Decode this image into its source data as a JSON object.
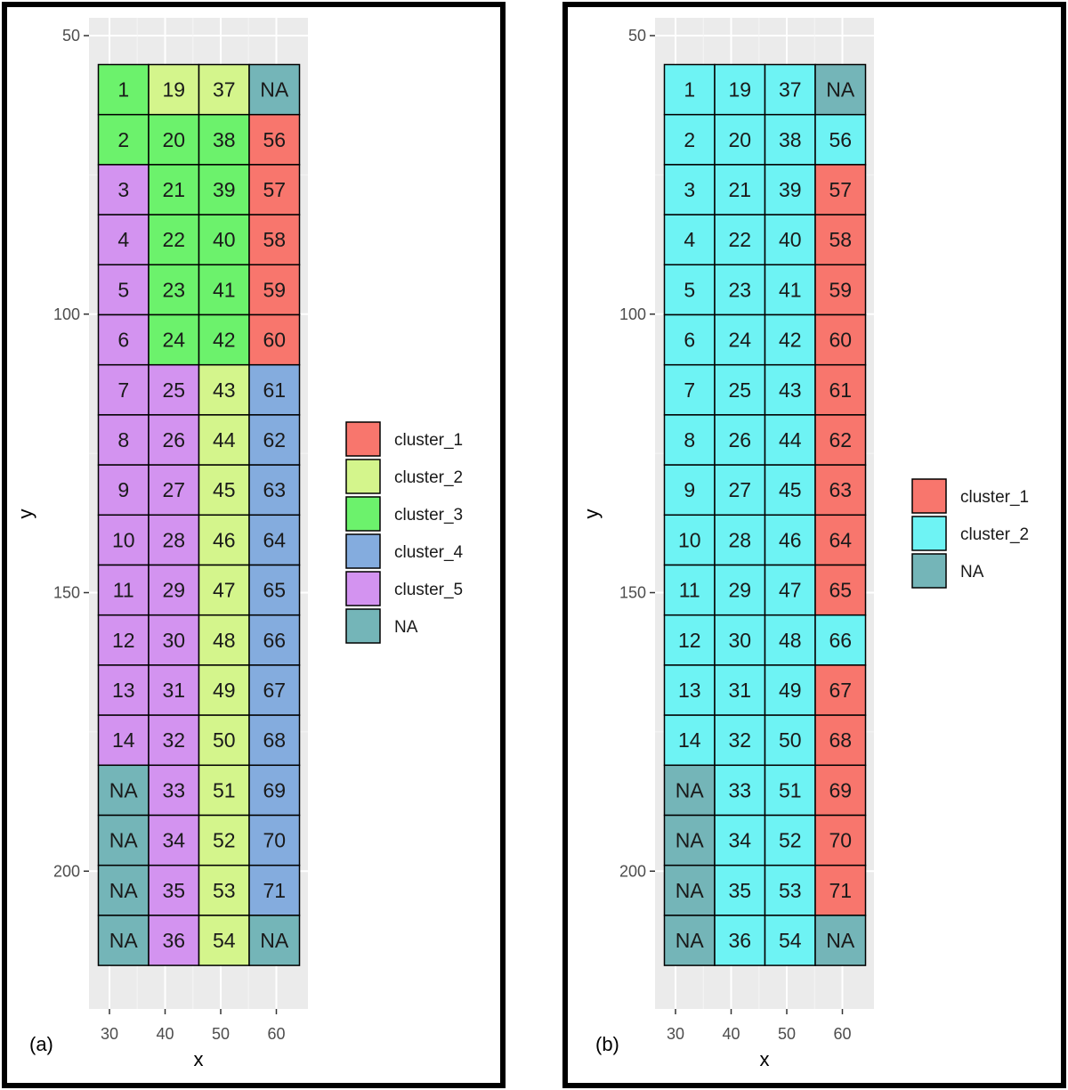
{
  "chart_data": [
    {
      "type": "heatmap",
      "panel_label": "(a)",
      "xlabel": "x",
      "ylabel": "y",
      "x_ticks": [
        30,
        40,
        50,
        60
      ],
      "y_ticks": [
        50,
        100,
        150,
        200
      ],
      "y_reversed": true,
      "columns_x": [
        30,
        40,
        50,
        60
      ],
      "rows_y": [
        60,
        69,
        78,
        87,
        96,
        105,
        114,
        123,
        132,
        141,
        150,
        159,
        168,
        177,
        186,
        195,
        204,
        213
      ],
      "columns": [
        {
          "labels": [
            "1",
            "2",
            "3",
            "4",
            "5",
            "6",
            "7",
            "8",
            "9",
            "10",
            "11",
            "12",
            "13",
            "14",
            "NA",
            "NA",
            "NA",
            "NA"
          ],
          "clusters": [
            "cluster_3",
            "cluster_3",
            "cluster_5",
            "cluster_5",
            "cluster_5",
            "cluster_5",
            "cluster_5",
            "cluster_5",
            "cluster_5",
            "cluster_5",
            "cluster_5",
            "cluster_5",
            "cluster_5",
            "cluster_5",
            "NA",
            "NA",
            "NA",
            "NA"
          ]
        },
        {
          "labels": [
            "19",
            "20",
            "21",
            "22",
            "23",
            "24",
            "25",
            "26",
            "27",
            "28",
            "29",
            "30",
            "31",
            "32",
            "33",
            "34",
            "35",
            "36"
          ],
          "clusters": [
            "cluster_2",
            "cluster_3",
            "cluster_3",
            "cluster_3",
            "cluster_3",
            "cluster_3",
            "cluster_5",
            "cluster_5",
            "cluster_5",
            "cluster_5",
            "cluster_5",
            "cluster_5",
            "cluster_5",
            "cluster_5",
            "cluster_5",
            "cluster_5",
            "cluster_5",
            "cluster_5"
          ]
        },
        {
          "labels": [
            "37",
            "38",
            "39",
            "40",
            "41",
            "42",
            "43",
            "44",
            "45",
            "46",
            "47",
            "48",
            "49",
            "50",
            "51",
            "52",
            "53",
            "54"
          ],
          "clusters": [
            "cluster_2",
            "cluster_3",
            "cluster_3",
            "cluster_3",
            "cluster_3",
            "cluster_3",
            "cluster_2",
            "cluster_2",
            "cluster_2",
            "cluster_2",
            "cluster_2",
            "cluster_2",
            "cluster_2",
            "cluster_2",
            "cluster_2",
            "cluster_2",
            "cluster_2",
            "cluster_2"
          ]
        },
        {
          "labels": [
            "NA",
            "56",
            "57",
            "58",
            "59",
            "60",
            "61",
            "62",
            "63",
            "64",
            "65",
            "66",
            "67",
            "68",
            "69",
            "70",
            "71",
            "NA"
          ],
          "clusters": [
            "NA",
            "cluster_1",
            "cluster_1",
            "cluster_1",
            "cluster_1",
            "cluster_1",
            "cluster_4",
            "cluster_4",
            "cluster_4",
            "cluster_4",
            "cluster_4",
            "cluster_4",
            "cluster_4",
            "cluster_4",
            "cluster_4",
            "cluster_4",
            "cluster_4",
            "NA"
          ]
        }
      ],
      "legend": [
        {
          "name": "cluster_1",
          "color": "#f8766d"
        },
        {
          "name": "cluster_2",
          "color": "#d4f58c"
        },
        {
          "name": "cluster_3",
          "color": "#6cf26c"
        },
        {
          "name": "cluster_4",
          "color": "#84acde"
        },
        {
          "name": "cluster_5",
          "color": "#d393f0"
        },
        {
          "name": "NA",
          "color": "#74b5b8"
        }
      ],
      "legend_position": "right"
    },
    {
      "type": "heatmap",
      "panel_label": "(b)",
      "xlabel": "x",
      "ylabel": "y",
      "x_ticks": [
        30,
        40,
        50,
        60
      ],
      "y_ticks": [
        50,
        100,
        150,
        200
      ],
      "y_reversed": true,
      "columns_x": [
        30,
        40,
        50,
        60
      ],
      "rows_y": [
        60,
        69,
        78,
        87,
        96,
        105,
        114,
        123,
        132,
        141,
        150,
        159,
        168,
        177,
        186,
        195,
        204,
        213
      ],
      "columns": [
        {
          "labels": [
            "1",
            "2",
            "3",
            "4",
            "5",
            "6",
            "7",
            "8",
            "9",
            "10",
            "11",
            "12",
            "13",
            "14",
            "NA",
            "NA",
            "NA",
            "NA"
          ],
          "clusters": [
            "cluster_2",
            "cluster_2",
            "cluster_2",
            "cluster_2",
            "cluster_2",
            "cluster_2",
            "cluster_2",
            "cluster_2",
            "cluster_2",
            "cluster_2",
            "cluster_2",
            "cluster_2",
            "cluster_2",
            "cluster_2",
            "NA",
            "NA",
            "NA",
            "NA"
          ]
        },
        {
          "labels": [
            "19",
            "20",
            "21",
            "22",
            "23",
            "24",
            "25",
            "26",
            "27",
            "28",
            "29",
            "30",
            "31",
            "32",
            "33",
            "34",
            "35",
            "36"
          ],
          "clusters": [
            "cluster_2",
            "cluster_2",
            "cluster_2",
            "cluster_2",
            "cluster_2",
            "cluster_2",
            "cluster_2",
            "cluster_2",
            "cluster_2",
            "cluster_2",
            "cluster_2",
            "cluster_2",
            "cluster_2",
            "cluster_2",
            "cluster_2",
            "cluster_2",
            "cluster_2",
            "cluster_2"
          ]
        },
        {
          "labels": [
            "37",
            "38",
            "39",
            "40",
            "41",
            "42",
            "43",
            "44",
            "45",
            "46",
            "47",
            "48",
            "49",
            "50",
            "51",
            "52",
            "53",
            "54"
          ],
          "clusters": [
            "cluster_2",
            "cluster_2",
            "cluster_2",
            "cluster_2",
            "cluster_2",
            "cluster_2",
            "cluster_2",
            "cluster_2",
            "cluster_2",
            "cluster_2",
            "cluster_2",
            "cluster_2",
            "cluster_2",
            "cluster_2",
            "cluster_2",
            "cluster_2",
            "cluster_2",
            "cluster_2"
          ]
        },
        {
          "labels": [
            "NA",
            "56",
            "57",
            "58",
            "59",
            "60",
            "61",
            "62",
            "63",
            "64",
            "65",
            "66",
            "67",
            "68",
            "69",
            "70",
            "71",
            "NA"
          ],
          "clusters": [
            "NA",
            "cluster_2",
            "cluster_1",
            "cluster_1",
            "cluster_1",
            "cluster_1",
            "cluster_1",
            "cluster_1",
            "cluster_1",
            "cluster_1",
            "cluster_1",
            "cluster_2",
            "cluster_1",
            "cluster_1",
            "cluster_1",
            "cluster_1",
            "cluster_1",
            "NA"
          ]
        }
      ],
      "legend": [
        {
          "name": "cluster_1",
          "color": "#f8766d"
        },
        {
          "name": "cluster_2",
          "color": "#6ef3f4"
        },
        {
          "name": "NA",
          "color": "#74b5b8"
        }
      ],
      "legend_position": "right"
    }
  ]
}
